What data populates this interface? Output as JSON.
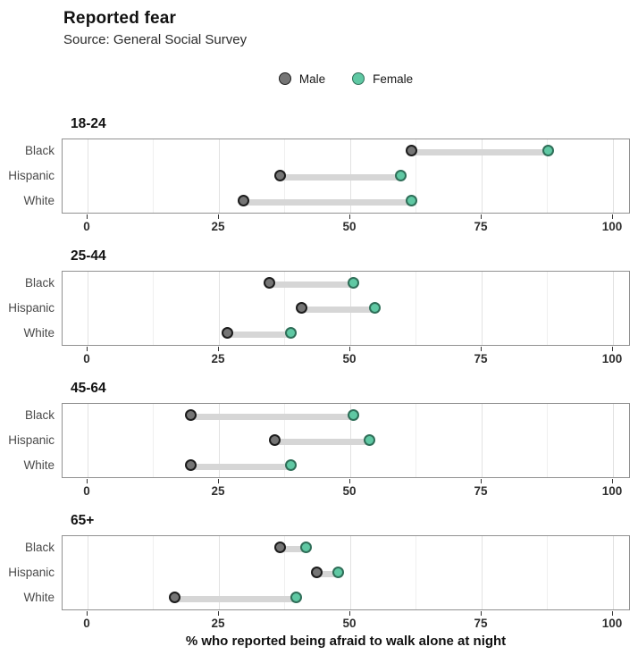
{
  "chart_data": {
    "type": "dumbbell",
    "title": "Reported fear",
    "subtitle": "Source: General Social Survey",
    "xlabel": "% who reported being afraid to walk alone at night",
    "xlim": [
      0,
      100
    ],
    "x_ticks": [
      0,
      25,
      50,
      75,
      100
    ],
    "x_minor_step": 12.5,
    "grid": "on",
    "legend_position": "top-center",
    "legend": [
      {
        "label": "Male",
        "fill": "#757575",
        "stroke": "#1c1c1c"
      },
      {
        "label": "Female",
        "fill": "#5fc8a3",
        "stroke": "#2f6e58"
      }
    ],
    "categories": [
      "Black",
      "Hispanic",
      "White"
    ],
    "facets": [
      {
        "age_group": "18-24",
        "rows": [
          {
            "group": "Black",
            "male": 62,
            "female": 88
          },
          {
            "group": "Hispanic",
            "male": 37,
            "female": 60
          },
          {
            "group": "White",
            "male": 30,
            "female": 62
          }
        ]
      },
      {
        "age_group": "25-44",
        "rows": [
          {
            "group": "Black",
            "male": 35,
            "female": 51
          },
          {
            "group": "Hispanic",
            "male": 41,
            "female": 55
          },
          {
            "group": "White",
            "male": 27,
            "female": 39
          }
        ]
      },
      {
        "age_group": "45-64",
        "rows": [
          {
            "group": "Black",
            "male": 20,
            "female": 51
          },
          {
            "group": "Hispanic",
            "male": 36,
            "female": 54
          },
          {
            "group": "White",
            "male": 20,
            "female": 39
          }
        ]
      },
      {
        "age_group": "65+",
        "rows": [
          {
            "group": "Black",
            "male": 37,
            "female": 42
          },
          {
            "group": "Hispanic",
            "male": 44,
            "female": 48
          },
          {
            "group": "White",
            "male": 17,
            "female": 40
          }
        ]
      }
    ],
    "colors": {
      "segment": "#d6d6d6",
      "grid_major": "#e2e2e2",
      "grid_minor": "#efefef",
      "panel_border": "#919191"
    }
  }
}
